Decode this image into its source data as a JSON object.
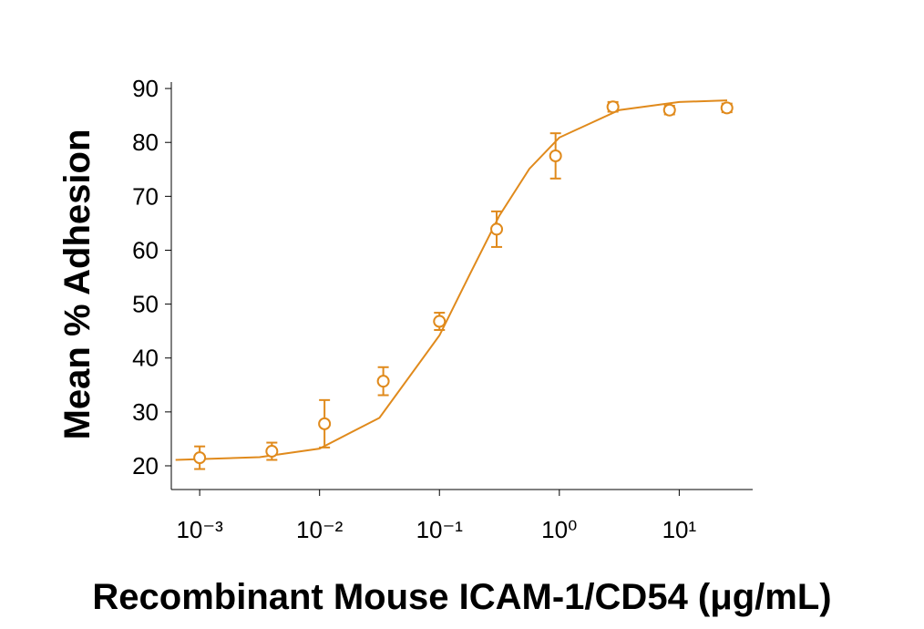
{
  "chart_data": {
    "type": "scatter",
    "xlabel": "Recombinant Mouse ICAM-1/CD54 (μg/mL)",
    "ylabel": "Mean % Adhesion",
    "xscale": "log",
    "xlim": [
      0.00058,
      41
    ],
    "ylim": [
      15.6,
      91.2
    ],
    "xticks": [
      {
        "value": 0.001,
        "label": "10⁻³"
      },
      {
        "value": 0.01,
        "label": "10⁻²"
      },
      {
        "value": 0.1,
        "label": "10⁻¹"
      },
      {
        "value": 1,
        "label": "10⁰"
      },
      {
        "value": 10,
        "label": "10¹"
      }
    ],
    "yticks": [
      20,
      30,
      40,
      50,
      60,
      70,
      80,
      90
    ],
    "color": "#e08a1c",
    "series": [
      {
        "color": "#e08a1c",
        "x": [
          0.001,
          0.004,
          0.011,
          0.034,
          0.1,
          0.3,
          0.93,
          2.8,
          8.3,
          25
        ],
        "values": [
          21.5,
          22.7,
          27.8,
          35.7,
          46.8,
          63.9,
          77.5,
          86.6,
          86.0,
          86.4
        ],
        "errors": [
          2.1,
          1.6,
          4.4,
          2.6,
          1.6,
          3.3,
          4.2,
          0.9,
          0.8,
          0.8
        ]
      }
    ],
    "curve": {
      "color": "#e08a1c",
      "x": [
        0.00063,
        0.00316,
        0.01,
        0.0316,
        0.1,
        0.178,
        0.316,
        0.562,
        1,
        3.16,
        10,
        25.1
      ],
      "values": [
        21.1,
        21.6,
        23.2,
        28.9,
        44.2,
        55.4,
        66.4,
        75.1,
        80.9,
        86.0,
        87.5,
        87.8
      ]
    }
  }
}
